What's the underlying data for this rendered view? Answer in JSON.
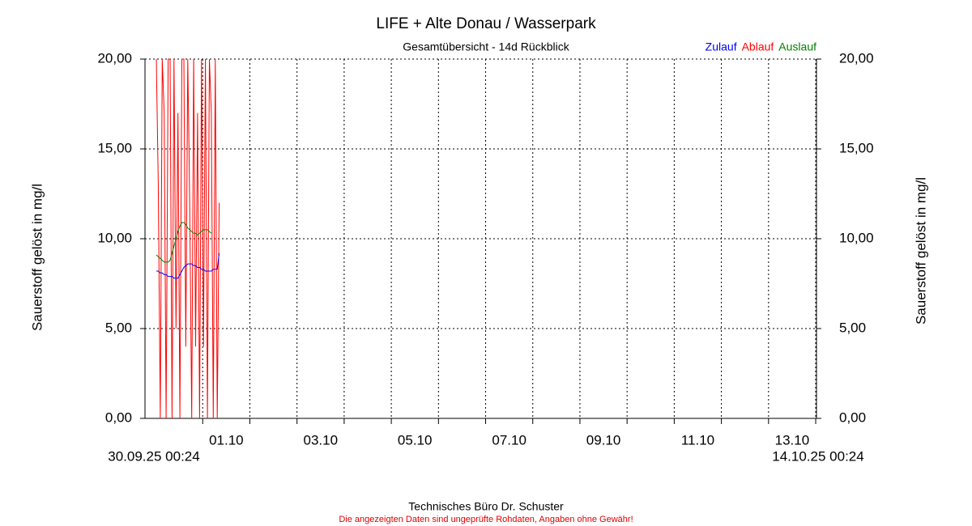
{
  "chart_data": {
    "type": "line",
    "title": "LIFE + Alte Donau / Wasserpark",
    "subtitle": "Gesamtübersicht - 14d Rückblick",
    "ylabel": "Sauerstoff gelöst in mg/l",
    "footer": "Technisches Büro Dr. Schuster",
    "disclaimer": "Die angezeigten Daten sind ungeprüfte Rohdaten, Angaben ohne Gewähr!",
    "grid": true,
    "legend": "top-right",
    "xlim": [
      {
        "value": "2025-09-30T00:24",
        "label": "30.09.25 00:24"
      },
      {
        "value": "2025-10-14T00:24",
        "label": "14.10.25 00:24"
      }
    ],
    "xticks": [
      {
        "value": "2025-10-01T00:00",
        "label": "01.10"
      },
      "2025-10-02T00:00",
      {
        "value": "2025-10-03T00:00",
        "label": "03.10"
      },
      "2025-10-04T00:00",
      {
        "value": "2025-10-05T00:00",
        "label": "05.10"
      },
      "2025-10-06T00:00",
      {
        "value": "2025-10-07T00:00",
        "label": "07.10"
      },
      "2025-10-08T00:00",
      {
        "value": "2025-10-09T00:00",
        "label": "09.10"
      },
      "2025-10-10T00:00",
      {
        "value": "2025-10-11T00:00",
        "label": "11.10"
      },
      "2025-10-12T00:00",
      {
        "value": "2025-10-13T00:00",
        "label": "13.10"
      },
      "2025-10-14T00:00"
    ],
    "ylim": [
      0,
      20
    ],
    "yticks": [
      {
        "value": 0,
        "label": "0,00"
      },
      {
        "value": 5,
        "label": "5,00"
      },
      {
        "value": 10,
        "label": "10,00"
      },
      {
        "value": 15,
        "label": "15,00"
      },
      {
        "value": 20,
        "label": "20,00"
      }
    ],
    "x": [
      "2025-09-30T00:24",
      "2025-09-30T01:24",
      "2025-09-30T02:24",
      "2025-09-30T03:24",
      "2025-09-30T04:24",
      "2025-09-30T05:24",
      "2025-09-30T06:24",
      "2025-09-30T07:24",
      "2025-09-30T08:24",
      "2025-09-30T09:24",
      "2025-09-30T10:24",
      "2025-09-30T11:24",
      "2025-09-30T12:24",
      "2025-09-30T13:24",
      "2025-09-30T14:24",
      "2025-09-30T15:24",
      "2025-09-30T16:24",
      "2025-09-30T17:24",
      "2025-09-30T18:24",
      "2025-09-30T19:24",
      "2025-09-30T20:24",
      "2025-09-30T21:24",
      "2025-09-30T22:24",
      "2025-09-30T23:24",
      "2025-10-01T00:24",
      "2025-10-01T01:24",
      "2025-10-01T02:24",
      "2025-10-01T03:24",
      "2025-10-01T04:24",
      "2025-10-01T05:24",
      "2025-10-01T06:24",
      "2025-10-01T07:24",
      "2025-10-01T08:24"
    ],
    "series": [
      {
        "name": "Zulauf",
        "color": "#0000ff",
        "values": [
          8.2,
          8.2,
          8.1,
          8.1,
          8.0,
          8.0,
          7.9,
          7.9,
          7.9,
          7.8,
          7.8,
          7.8,
          8.0,
          8.2,
          8.4,
          8.5,
          8.6,
          8.6,
          8.6,
          8.5,
          8.5,
          8.4,
          8.4,
          8.3,
          8.3,
          8.2,
          8.2,
          8.2,
          8.2,
          8.3,
          8.3,
          8.3,
          9.2
        ]
      },
      {
        "name": "Ablauf",
        "color": "#ff0000",
        "values": [
          20,
          13,
          0,
          20,
          17,
          0,
          20,
          20,
          0,
          20,
          5,
          17,
          0,
          20,
          20,
          4,
          20,
          12,
          0,
          20,
          4,
          17,
          0,
          20,
          4,
          20,
          0,
          20,
          17,
          0,
          20,
          0,
          12
        ]
      },
      {
        "name": "Auslauf",
        "color": "#008000",
        "values": [
          9.1,
          9.0,
          8.9,
          8.8,
          8.7,
          8.7,
          8.7,
          8.8,
          9.2,
          9.6,
          10.0,
          10.4,
          10.7,
          10.9,
          10.9,
          10.8,
          10.6,
          10.5,
          10.4,
          10.3,
          10.3,
          10.2,
          10.3,
          10.4,
          10.5,
          10.5,
          10.5,
          10.4,
          10.3,
          null,
          null,
          null,
          null
        ]
      }
    ]
  }
}
